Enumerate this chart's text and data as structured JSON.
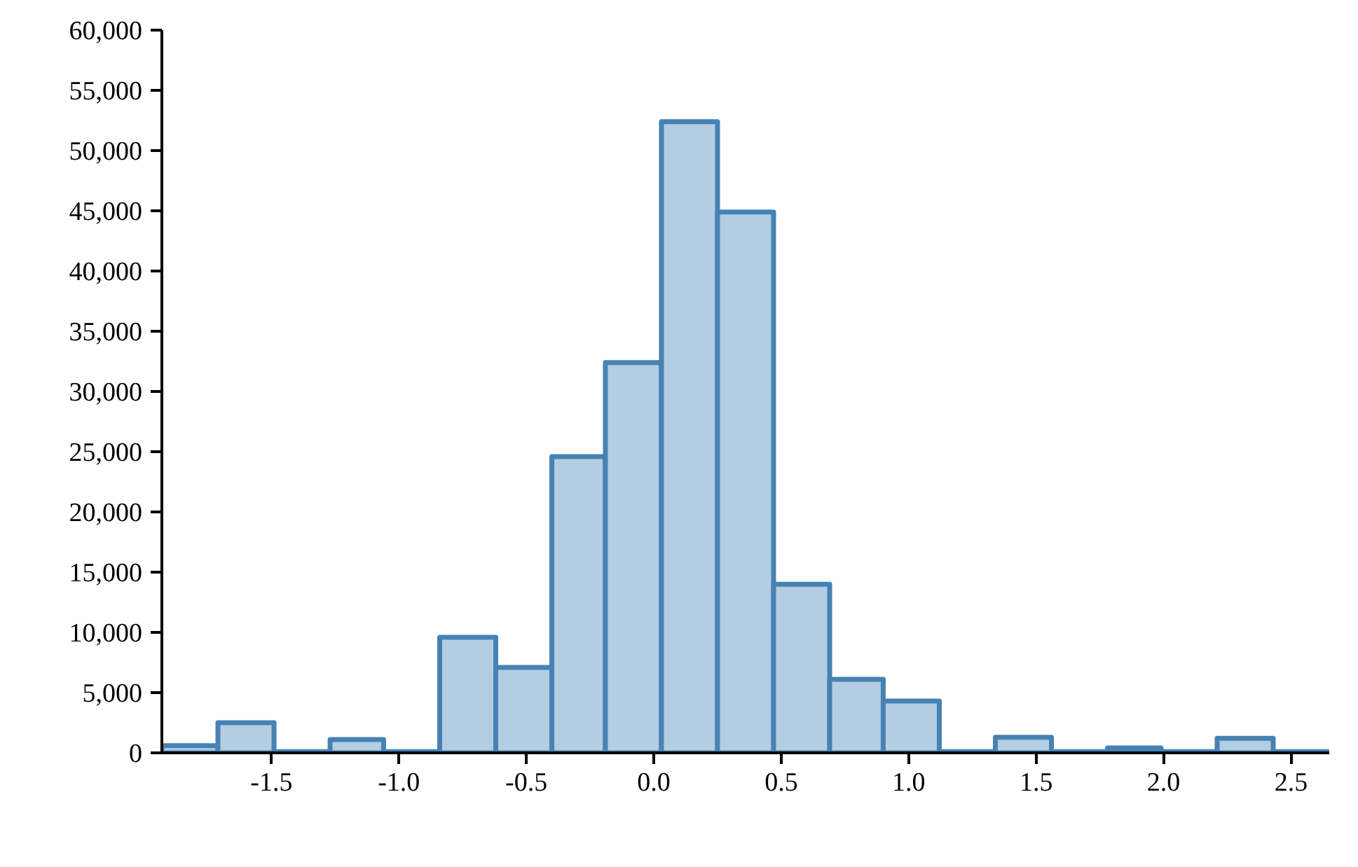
{
  "chart_data": {
    "type": "histogram",
    "bins": [
      -1.93,
      -1.71,
      -1.49,
      -1.27,
      -1.06,
      -0.84,
      -0.62,
      -0.4,
      -0.19,
      0.03,
      0.25,
      0.47,
      0.69,
      0.9,
      1.12,
      1.34,
      1.56,
      1.78,
      1.99,
      2.21,
      2.43,
      2.65
    ],
    "values": [
      600,
      2500,
      100,
      1100,
      100,
      9600,
      7100,
      24600,
      32400,
      52400,
      44900,
      14000,
      6100,
      4300,
      100,
      1300,
      100,
      400,
      100,
      1200,
      100
    ],
    "color": "#4682b4",
    "xlim": [
      -1.93,
      2.65
    ],
    "xticks": [
      {
        "value": -1.5,
        "label": "-1.5"
      },
      {
        "value": -1,
        "label": "-1.0"
      },
      {
        "value": -0.5,
        "label": "-0.5"
      },
      {
        "value": 0,
        "label": "0.0"
      },
      {
        "value": 0.5,
        "label": "0.5"
      },
      {
        "value": 1,
        "label": "1.0"
      },
      {
        "value": 1.5,
        "label": "1.5"
      },
      {
        "value": 2,
        "label": "2.0"
      },
      {
        "value": 2.5,
        "label": "2.5"
      }
    ],
    "ylim": [
      0,
      60000
    ],
    "yticks": [
      {
        "value": 0,
        "label": "0"
      },
      {
        "value": 5000,
        "label": "5,000"
      },
      {
        "value": 10000,
        "label": "10,000"
      },
      {
        "value": 15000,
        "label": "15,000"
      },
      {
        "value": 20000,
        "label": "20,000"
      },
      {
        "value": 25000,
        "label": "25,000"
      },
      {
        "value": 30000,
        "label": "30,000"
      },
      {
        "value": 35000,
        "label": "35,000"
      },
      {
        "value": 40000,
        "label": "40,000"
      },
      {
        "value": 45000,
        "label": "45,000"
      },
      {
        "value": 50000,
        "label": "50,000"
      },
      {
        "value": 55000,
        "label": "55,000"
      },
      {
        "value": 60000,
        "label": "60,000"
      }
    ],
    "grid": false
  }
}
